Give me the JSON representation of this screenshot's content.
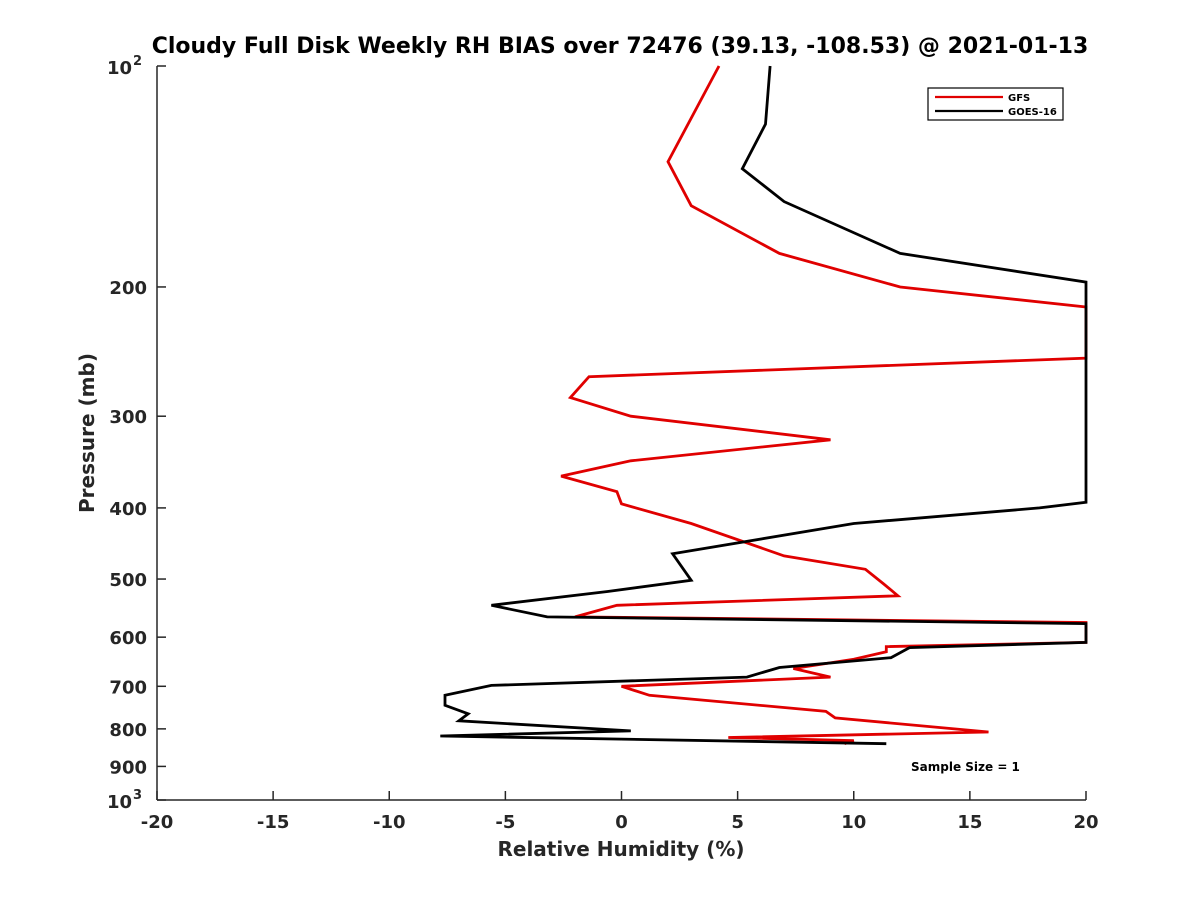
{
  "chart_data": {
    "type": "line",
    "title": "Cloudy Full Disk Weekly RH BIAS over 72476 (39.13, -108.53) @ 2021-01-13",
    "xlabel": "Relative Humidity (%)",
    "ylabel": "Pressure (mb)",
    "xlim": [
      -20,
      20
    ],
    "ylim": [
      100,
      1000
    ],
    "y_scale": "log",
    "y_reversed": true,
    "x_ticks": [
      -20,
      -15,
      -10,
      -5,
      0,
      5,
      10,
      15,
      20
    ],
    "x_tick_labels": [
      "-20",
      "-15",
      "-10",
      "-5",
      "0",
      "5",
      "10",
      "15",
      "20"
    ],
    "y_ticks": [
      {
        "value": 100,
        "base": "10",
        "exp": "2"
      },
      {
        "value": 200,
        "label": "200"
      },
      {
        "value": 300,
        "label": "300"
      },
      {
        "value": 400,
        "label": "400"
      },
      {
        "value": 500,
        "label": "500"
      },
      {
        "value": 600,
        "label": "600"
      },
      {
        "value": 700,
        "label": "700"
      },
      {
        "value": 800,
        "label": "800"
      },
      {
        "value": 900,
        "label": "900"
      },
      {
        "value": 1000,
        "base": "10",
        "exp": "3"
      }
    ],
    "grid": false,
    "legend": "top-right",
    "annotation": "Sample Size = 1",
    "series": [
      {
        "name": "GFS",
        "color": "#e00000",
        "points": [
          [
            4.2,
            100
          ],
          [
            2.0,
            135
          ],
          [
            3.0,
            155
          ],
          [
            6.8,
            180
          ],
          [
            12.0,
            200
          ],
          [
            20.0,
            213
          ],
          [
            20.0,
            250
          ],
          [
            20.0,
            250
          ],
          [
            -1.4,
            265
          ],
          [
            -2.2,
            283
          ],
          [
            0.4,
            300
          ],
          [
            9.0,
            323
          ],
          [
            0.4,
            345
          ],
          [
            -2.6,
            362
          ],
          [
            -0.2,
            380
          ],
          [
            0.0,
            395
          ],
          [
            3.0,
            420
          ],
          [
            7.0,
            465
          ],
          [
            10.5,
            485
          ],
          [
            11.3,
            508
          ],
          [
            11.9,
            527
          ],
          [
            -0.2,
            543
          ],
          [
            -2.0,
            563
          ],
          [
            20.0,
            573
          ],
          [
            20.0,
            610
          ],
          [
            11.4,
            618
          ],
          [
            11.4,
            628
          ],
          [
            10.0,
            643
          ],
          [
            7.4,
            662
          ],
          [
            9.0,
            680
          ],
          [
            0.0,
            700
          ],
          [
            1.2,
            720
          ],
          [
            8.8,
            757
          ],
          [
            9.2,
            773
          ],
          [
            15.8,
            808
          ],
          [
            4.6,
            822
          ],
          [
            10.0,
            830
          ],
          [
            9.6,
            838
          ]
        ]
      },
      {
        "name": "GOES-16",
        "color": "#000000",
        "points": [
          [
            6.4,
            100
          ],
          [
            6.2,
            120
          ],
          [
            5.2,
            138
          ],
          [
            7.0,
            153
          ],
          [
            12.0,
            180
          ],
          [
            20.0,
            197
          ],
          [
            20.0,
            393
          ],
          [
            18.0,
            400
          ],
          [
            10.0,
            420
          ],
          [
            2.2,
            462
          ],
          [
            3.0,
            502
          ],
          [
            -0.6,
            520
          ],
          [
            -5.6,
            543
          ],
          [
            -3.2,
            563
          ],
          [
            20.0,
            575
          ],
          [
            20.0,
            610
          ],
          [
            12.4,
            620
          ],
          [
            11.6,
            640
          ],
          [
            6.8,
            660
          ],
          [
            5.4,
            680
          ],
          [
            -5.6,
            698
          ],
          [
            -7.6,
            720
          ],
          [
            -7.6,
            743
          ],
          [
            -6.6,
            763
          ],
          [
            -7.0,
            780
          ],
          [
            0.4,
            805
          ],
          [
            -7.8,
            818
          ],
          [
            11.4,
            838
          ]
        ]
      }
    ]
  }
}
